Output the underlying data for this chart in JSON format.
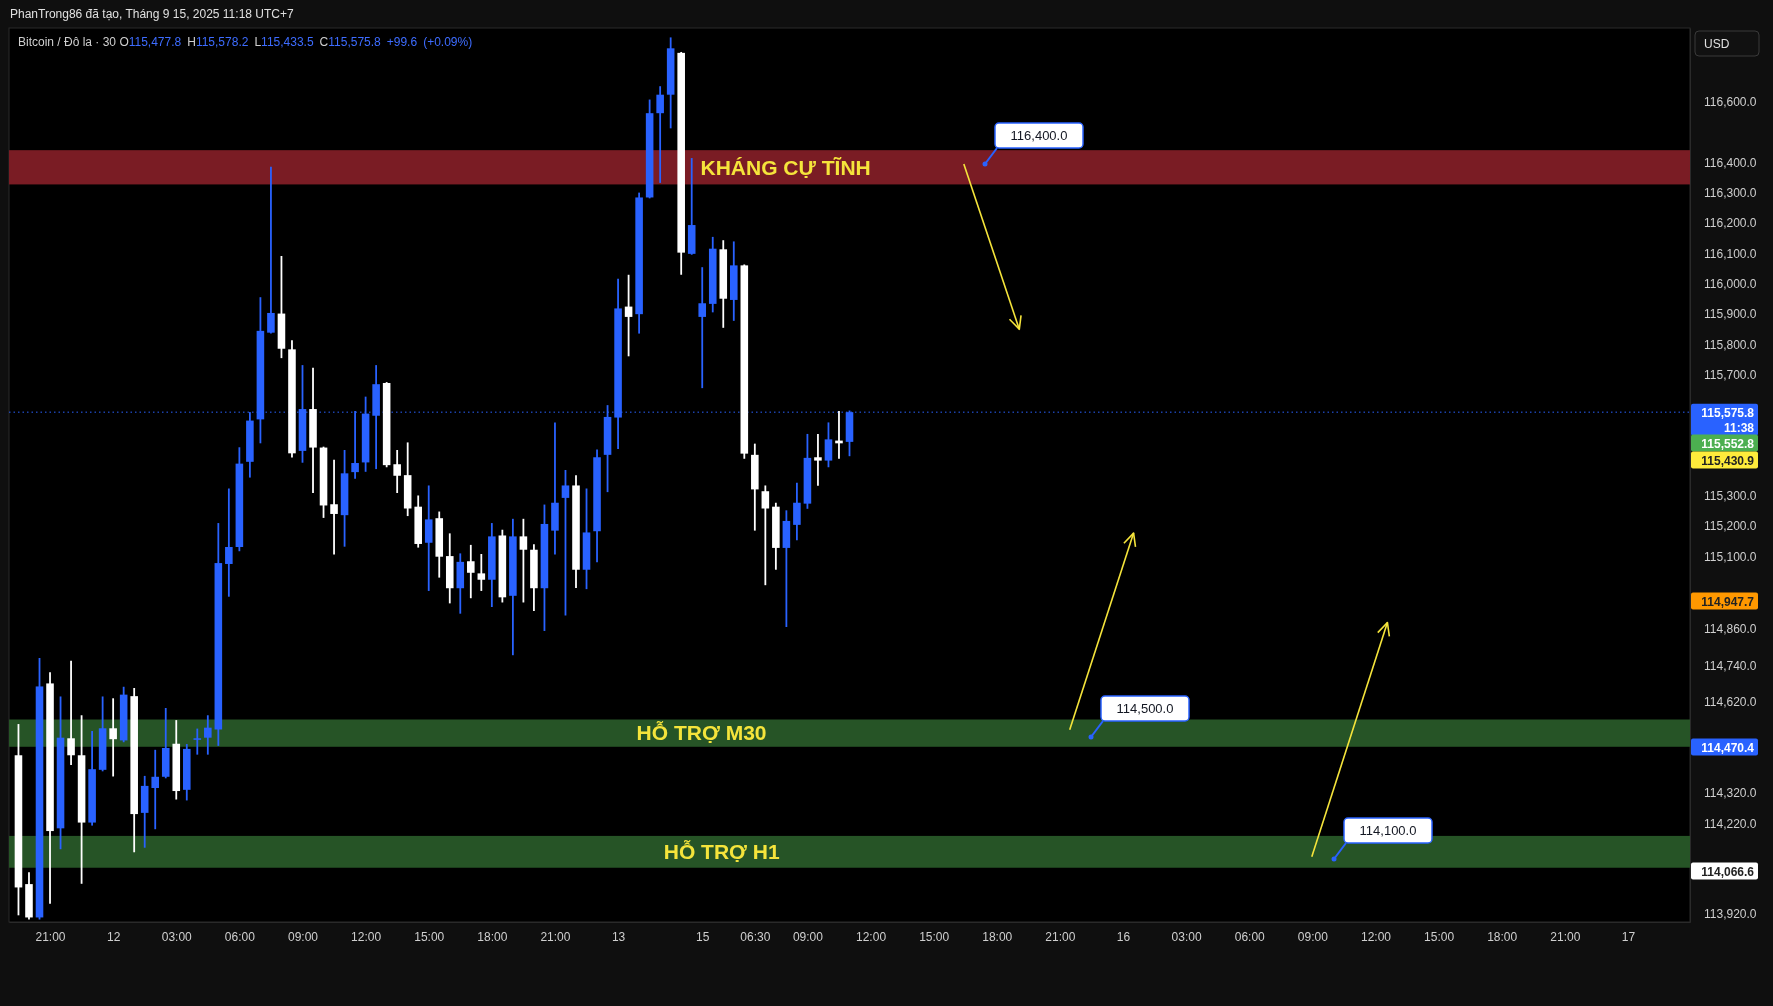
{
  "chart_data": {
    "type": "candlestick",
    "title": "Bitcoin / Đô la · 30",
    "subtitle": "O115,477.8 H115,578.2 L115,433.5 C115,575.8 +99.6 (+0.09%)",
    "categories": [
      null,
      null,
      null,
      "21:00",
      null,
      null,
      null,
      null,
      null,
      "12",
      null,
      null,
      null,
      null,
      null,
      "03:00",
      null,
      null,
      null,
      null,
      null,
      "06:00",
      null,
      null,
      null,
      null,
      null,
      "09:00",
      null,
      null,
      null,
      null,
      null,
      "12:00",
      null,
      null,
      null,
      null,
      null,
      "15:00",
      null,
      null,
      null,
      null,
      null,
      "18:00",
      null,
      null,
      null,
      null,
      null,
      "21:00",
      null,
      null,
      null,
      null,
      null,
      "13",
      null,
      null,
      null,
      null,
      null,
      null,
      null,
      "15",
      null,
      null,
      null,
      null,
      "06:30",
      null,
      null,
      null,
      null,
      "09:00",
      null,
      null,
      null,
      null,
      null,
      "12:00",
      null,
      null,
      null,
      null,
      null,
      "15:00",
      null,
      null,
      null,
      null,
      null,
      "18:00",
      null,
      null,
      null,
      null,
      null,
      "21:00",
      null,
      null,
      null,
      null,
      null,
      "16",
      null,
      null,
      null,
      null,
      null,
      "03:00",
      null,
      null,
      null,
      null,
      null,
      "06:00",
      null,
      null,
      null,
      null,
      null,
      "09:00",
      null,
      null,
      null,
      null,
      null,
      "12:00",
      null,
      null,
      null,
      null,
      null,
      "15:00",
      null,
      null,
      null,
      null,
      null,
      "18:00",
      null,
      null,
      null,
      null,
      null,
      "21:00",
      null,
      null,
      null,
      null,
      null,
      "17",
      null,
      null,
      null,
      null,
      null
    ],
    "ohlc": [
      [
        114444,
        114544,
        113919,
        114008
      ],
      [
        114019,
        114055,
        113905,
        113909
      ],
      [
        113909,
        114762,
        113905,
        114671
      ],
      [
        114681,
        114715,
        113957,
        114194
      ],
      [
        114203,
        114635,
        114137,
        114502
      ],
      [
        114500,
        114753,
        114415,
        114444
      ],
      [
        114444,
        114573,
        114023,
        114222
      ],
      [
        114222,
        114521,
        114215,
        114398
      ],
      [
        114396,
        114635,
        114394,
        114533
      ],
      [
        114533,
        114629,
        114377,
        114497
      ],
      [
        114493,
        114667,
        114490,
        114644
      ],
      [
        114639,
        114663,
        114127,
        114250
      ],
      [
        114254,
        114373,
        114142,
        114343
      ],
      [
        114336,
        114459,
        114203,
        114373
      ],
      [
        114373,
        114597,
        114371,
        114468
      ],
      [
        114482,
        114557,
        114301,
        114326
      ],
      [
        114330,
        114478,
        114298,
        114465
      ],
      [
        114495,
        114529,
        114449,
        114500
      ],
      [
        114502,
        114573,
        114449,
        114535
      ],
      [
        114529,
        115207,
        114478,
        115078
      ],
      [
        115075,
        115321,
        114970,
        115131
      ],
      [
        115131,
        115457,
        115120,
        115406
      ],
      [
        115412,
        115573,
        115363,
        115548
      ],
      [
        115552,
        115952,
        115476,
        115844
      ],
      [
        115838,
        116382,
        115838,
        115903
      ],
      [
        115901,
        116088,
        115757,
        115785
      ],
      [
        115783,
        115810,
        115429,
        115440
      ],
      [
        115448,
        115728,
        115412,
        115586
      ],
      [
        115586,
        115719,
        115312,
        115459
      ],
      [
        115459,
        115459,
        115230,
        115268
      ],
      [
        115272,
        115416,
        115109,
        115240
      ],
      [
        115236,
        115448,
        115135,
        115374
      ],
      [
        115378,
        115577,
        115359,
        115408
      ],
      [
        115410,
        115624,
        115382,
        115571
      ],
      [
        115564,
        115728,
        115391,
        115668
      ],
      [
        115672,
        115672,
        115397,
        115401
      ],
      [
        115404,
        115448,
        115312,
        115366
      ],
      [
        115368,
        115473,
        115236,
        115258
      ],
      [
        115264,
        115298,
        115132,
        115141
      ],
      [
        115145,
        115331,
        114989,
        115222
      ],
      [
        115226,
        115245,
        115033,
        115099
      ],
      [
        115101,
        115173,
        114948,
        114995
      ],
      [
        114995,
        115107,
        114914,
        115082
      ],
      [
        115084,
        115135,
        114965,
        115046
      ],
      [
        115044,
        115105,
        114989,
        115023
      ],
      [
        115023,
        115207,
        114936,
        115166
      ],
      [
        115169,
        115185,
        114951,
        114965
      ],
      [
        114970,
        115221,
        114777,
        115166
      ],
      [
        115166,
        115221,
        114951,
        115122
      ],
      [
        115122,
        115137,
        114923,
        114995
      ],
      [
        114995,
        115268,
        114857,
        115207
      ],
      [
        115185,
        115539,
        115109,
        115277
      ],
      [
        115293,
        115382,
        114908,
        115334
      ],
      [
        115334,
        115365,
        114999,
        115056
      ],
      [
        115056,
        115321,
        114995,
        115179
      ],
      [
        115183,
        115450,
        115084,
        115427
      ],
      [
        115435,
        115596,
        115315,
        115560
      ],
      [
        115558,
        116013,
        115457,
        115918
      ],
      [
        115924,
        116026,
        115763,
        115890
      ],
      [
        115899,
        116297,
        115838,
        116284
      ],
      [
        116284,
        116604,
        116284,
        116562
      ],
      [
        116562,
        116648,
        116335,
        116623
      ],
      [
        116623,
        116809,
        116515,
        116776
      ],
      [
        116761,
        116761,
        116032,
        116102
      ],
      [
        116098,
        116411,
        116098,
        116193
      ],
      [
        115890,
        116051,
        115658,
        115935
      ],
      [
        115933,
        116151,
        115908,
        116115
      ],
      [
        116113,
        116140,
        115857,
        115950
      ],
      [
        115946,
        116136,
        115880,
        116060
      ],
      [
        116060,
        116060,
        115425,
        115439
      ],
      [
        115435,
        115469,
        115188,
        115321
      ],
      [
        115315,
        115331,
        115008,
        115258
      ],
      [
        115264,
        115274,
        115059,
        115128
      ],
      [
        115128,
        115249,
        114870,
        115217
      ],
      [
        115204,
        115340,
        115156,
        115277
      ],
      [
        115274,
        115501,
        115260,
        115425
      ],
      [
        115427,
        115501,
        115336,
        115416
      ],
      [
        115416,
        115539,
        115397,
        115486
      ],
      [
        115482,
        115577,
        115425,
        115473
      ],
      [
        115477.8,
        115578.2,
        115433.5,
        115575.8
      ],
      null,
      null,
      null,
      null,
      null,
      null,
      null,
      null,
      null,
      null,
      null,
      null,
      null,
      null,
      null,
      null,
      null,
      null,
      null,
      null,
      null,
      null,
      null,
      null,
      null,
      null,
      null,
      null,
      null,
      null,
      null,
      null,
      null,
      null,
      null,
      null,
      null,
      null,
      null,
      null,
      null,
      null,
      null,
      null,
      null,
      null,
      null,
      null,
      null,
      null,
      null,
      null,
      null,
      null,
      null,
      null,
      null,
      null,
      null,
      null,
      null,
      null,
      null,
      null,
      null,
      null,
      null,
      null,
      null,
      null,
      null,
      null,
      null,
      null,
      null,
      null,
      null,
      null,
      null
    ],
    "colors": [
      "#ffffff",
      "#ffffff",
      "#2962ff",
      "#ffffff",
      "#2962ff",
      "#ffffff",
      "#ffffff",
      "#2962ff",
      "#2962ff",
      "#ffffff",
      "#2962ff",
      "#ffffff",
      "#2962ff",
      "#2962ff",
      "#2962ff",
      "#ffffff",
      "#2962ff",
      "#2962ff",
      "#2962ff",
      "#2962ff",
      "#2962ff",
      "#2962ff",
      "#2962ff",
      "#2962ff",
      "#2962ff",
      "#ffffff",
      "#ffffff",
      "#2962ff",
      "#ffffff",
      "#ffffff",
      "#ffffff",
      "#2962ff",
      "#2962ff",
      "#2962ff",
      "#2962ff",
      "#ffffff",
      "#ffffff",
      "#ffffff",
      "#ffffff",
      "#2962ff",
      "#ffffff",
      "#ffffff",
      "#2962ff",
      "#ffffff",
      "#ffffff",
      "#2962ff",
      "#ffffff",
      "#2962ff",
      "#ffffff",
      "#ffffff",
      "#2962ff",
      "#2962ff",
      "#2962ff",
      "#ffffff",
      "#2962ff",
      "#2962ff",
      "#2962ff",
      "#2962ff",
      "#ffffff",
      "#2962ff",
      "#2962ff",
      "#2962ff",
      "#2962ff",
      "#ffffff",
      "#2962ff",
      "#2962ff",
      "#2962ff",
      "#ffffff",
      "#2962ff",
      "#ffffff",
      "#ffffff",
      "#ffffff",
      "#ffffff",
      "#2962ff",
      "#2962ff",
      "#2962ff",
      "#ffffff",
      "#2962ff",
      "#ffffff",
      "#2962ff",
      null,
      null,
      null,
      null,
      null,
      null,
      null,
      null,
      null,
      null,
      null,
      null,
      null,
      null,
      null,
      null,
      null,
      null,
      null,
      null,
      null,
      null,
      null,
      null,
      null,
      null,
      null,
      null,
      null,
      null,
      null,
      null,
      null,
      null,
      null,
      null,
      null,
      null,
      null,
      null,
      null,
      null,
      null,
      null,
      null,
      null,
      null,
      null,
      null,
      null,
      null,
      null,
      null,
      null,
      null,
      null,
      null,
      null,
      null,
      null,
      null,
      null,
      null,
      null,
      null,
      null,
      null,
      null,
      null,
      null,
      null,
      null,
      null,
      null,
      null,
      null,
      null,
      null,
      null
    ],
    "ylim": [
      113894,
      116843
    ],
    "yticks": [
      {
        "value": 116600,
        "label": "116,600.0"
      },
      {
        "value": 116400,
        "label": "116,400.0"
      },
      {
        "value": 116300,
        "label": "116,300.0"
      },
      {
        "value": 116200,
        "label": "116,200.0"
      },
      {
        "value": 116100,
        "label": "116,100.0"
      },
      {
        "value": 116000,
        "label": "116,000.0"
      },
      {
        "value": 115900,
        "label": "115,900.0"
      },
      {
        "value": 115800,
        "label": "115,800.0"
      },
      {
        "value": 115700,
        "label": "115,700.0"
      },
      {
        "value": 115300,
        "label": "115,300.0"
      },
      {
        "value": 115200,
        "label": "115,200.0"
      },
      {
        "value": 115100,
        "label": "115,100.0"
      },
      {
        "value": 114860,
        "label": "114,860.0"
      },
      {
        "value": 114740,
        "label": "114,740.0"
      },
      {
        "value": 114620,
        "label": "114,620.0"
      },
      {
        "value": 114320,
        "label": "114,320.0"
      },
      {
        "value": 114220,
        "label": "114,220.0"
      },
      {
        "value": 113920,
        "label": "113,920.0"
      }
    ],
    "bands": [
      {
        "axis": "y",
        "from": 116327,
        "to": 116440,
        "label": "KHÁNG CỰ TĨNH",
        "color": "#7a1c24"
      },
      {
        "axis": "y",
        "from": 114472,
        "to": 114562,
        "label": "HỖ TRỢ M30",
        "color": "#265426"
      },
      {
        "axis": "y",
        "from": 114073,
        "to": 114178,
        "label": "HỖ TRỢ H1",
        "color": "#265426"
      }
    ],
    "ref_lines": [
      {
        "axis": "y",
        "value": 115575.8,
        "label": "115,575.8",
        "color": "#2962ff",
        "line_style": "dotted"
      }
    ],
    "annotations": [
      "PhanTrong86 đã tạo, Tháng 9 15, 2025 11:18 UTC+7",
      "USD",
      "11:38",
      "116,400.0",
      "114,500.0",
      "114,100.0",
      "115,552.8",
      "115,430.9",
      "114,947.7",
      "114,470.4",
      "114,066.6"
    ]
  }
}
